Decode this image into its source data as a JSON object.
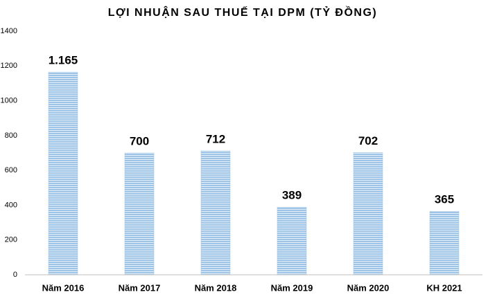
{
  "chart_data": {
    "type": "bar",
    "title": "LỢI NHUẬN SAU THUẾ TẠI DPM (TỶ ĐỒNG)",
    "categories": [
      "Năm 2016",
      "Năm 2017",
      "Năm 2018",
      "Năm 2019",
      "Năm 2020",
      "KH 2021"
    ],
    "values": [
      1165,
      700,
      712,
      389,
      702,
      365
    ],
    "value_labels": [
      "1.165",
      "700",
      "712",
      "389",
      "702",
      "365"
    ],
    "color": "#9dc3e6",
    "ylim": [
      0,
      1400
    ],
    "yticks": [
      0,
      200,
      400,
      600,
      800,
      1000,
      1200,
      1400
    ],
    "grid": false
  }
}
